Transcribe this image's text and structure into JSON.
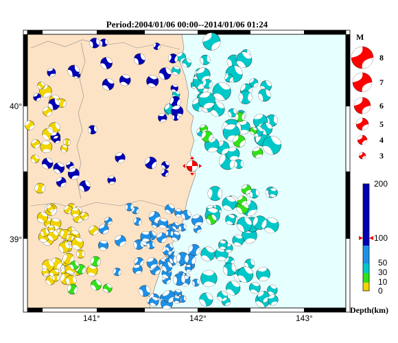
{
  "title": "Period:2004/01/06 00:00--2014/01/06 01:24",
  "axes": {
    "lat_labels": [
      "40°",
      "39°"
    ],
    "lon_labels": [
      "141°",
      "142°",
      "143°"
    ]
  },
  "magnitude_legend": {
    "header": "M",
    "entries": [
      {
        "m": "8"
      },
      {
        "m": "7"
      },
      {
        "m": "6"
      },
      {
        "m": "5"
      },
      {
        "m": "4"
      },
      {
        "m": "3"
      }
    ]
  },
  "depth_legend": {
    "title": "Depth(km)",
    "ticks": [
      "200",
      "100",
      "50",
      "30",
      "10",
      "0"
    ],
    "colors": {
      "shallow": "#f2d400",
      "mid_shallow": "#33e01a",
      "mid": "#00c8c8",
      "deep": "#1e90e6",
      "very_deep": "#0000b4"
    }
  },
  "colors": {
    "land": "#fde3c5",
    "sea": "#e6ffff",
    "highlight": "#ff0000"
  }
}
